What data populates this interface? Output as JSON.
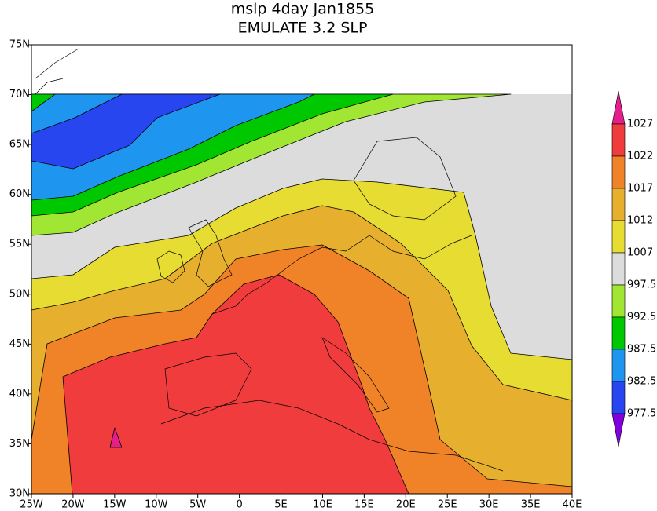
{
  "header": {
    "title_lines": [
      "mslp 4day Jan1855",
      "EMULATE 3.2 SLP"
    ]
  },
  "map": {
    "lon_labels": [
      "25W",
      "20W",
      "15W",
      "10W",
      "5W",
      "0",
      "5E",
      "10E",
      "15E",
      "20E",
      "25E",
      "30E",
      "35E",
      "40E"
    ],
    "lat_labels": [
      "30N",
      "35N",
      "40N",
      "45N",
      "50N",
      "55N",
      "60N",
      "65N",
      "70N",
      "75N"
    ]
  },
  "colorbar": {
    "labels": [
      "1027",
      "1022",
      "1017",
      "1012",
      "1007",
      "997.5",
      "992.5",
      "987.5",
      "982.5",
      "977.5"
    ]
  }
}
